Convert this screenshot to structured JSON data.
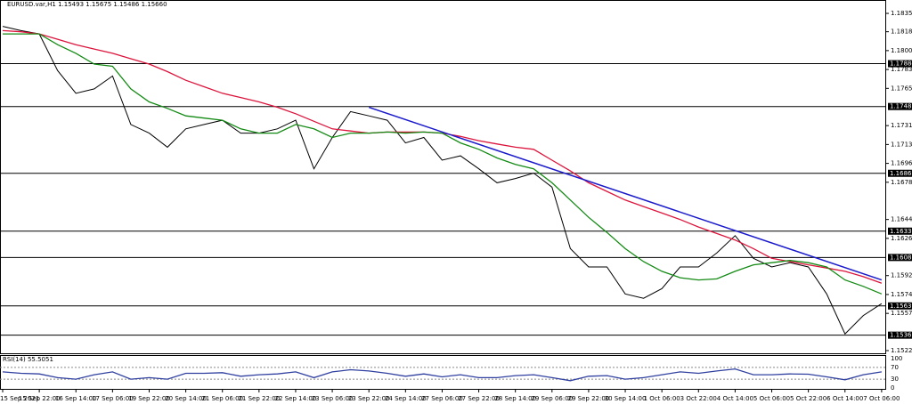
{
  "chart_data": [
    {
      "type": "line",
      "title": "EURUSD.var,H1 1.15493 1.15675 1.15486 1.15660",
      "categories": [
        "15 Sep 2021",
        null,
        "15 Sep 22:00",
        null,
        "16 Sep 14:00",
        null,
        "17 Sep 06:00",
        null,
        "19 Sep 22:00",
        null,
        "20 Sep 14:00",
        null,
        "21 Sep 06:00",
        null,
        "21 Sep 22:00",
        null,
        "22 Sep 14:00",
        null,
        "23 Sep 06:00",
        null,
        "23 Sep 22:00",
        null,
        "24 Sep 14:00",
        null,
        "27 Sep 06:00",
        null,
        "27 Sep 22:00",
        null,
        "28 Sep 14:00",
        null,
        "29 Sep 06:00",
        null,
        "29 Sep 22:00",
        null,
        "30 Sep 14:00",
        null,
        "1 Oct 06:00",
        null,
        "3 Oct 22:00",
        null,
        "4 Oct 14:00",
        null,
        "5 Oct 06:00",
        null,
        "5 Oct 22:00",
        null,
        "6 Oct 14:00",
        null,
        "7 Oct 06:00"
      ],
      "series": [
        {
          "color": "#000000",
          "values": [
            1.1823,
            1.1819,
            1.1816,
            1.1782,
            1.1761,
            1.1765,
            1.1777,
            1.1732,
            1.1724,
            1.1711,
            1.1728,
            1.1732,
            1.1736,
            1.1724,
            1.1724,
            1.1728,
            1.1736,
            1.1691,
            1.172,
            1.1744,
            1.174,
            1.1736,
            1.1715,
            1.172,
            1.1699,
            1.1703,
            1.1691,
            1.1678,
            1.1682,
            1.1687,
            1.1674,
            1.1617,
            1.16,
            1.16,
            1.1575,
            1.1571,
            1.158,
            1.16,
            1.16,
            1.1613,
            1.1629,
            1.1608,
            1.16,
            1.1604,
            1.16,
            1.1575,
            1.1538,
            1.1555,
            1.1566
          ]
        },
        {
          "color": "#dc143c",
          "values": [
            1.1819,
            1.1818,
            1.1816,
            1.1811,
            1.1806,
            1.1802,
            1.1798,
            1.1793,
            1.1788,
            1.1781,
            1.1773,
            1.1767,
            1.1761,
            1.1757,
            1.1753,
            1.1748,
            1.1742,
            1.1735,
            1.1728,
            1.1726,
            1.1724,
            1.1725,
            1.1725,
            1.1725,
            1.1724,
            1.1721,
            1.1717,
            1.1714,
            1.1711,
            1.1709,
            1.1699,
            1.1689,
            1.1678,
            1.167,
            1.1662,
            1.1656,
            1.165,
            1.1644,
            1.1637,
            1.1631,
            1.1625,
            1.1617,
            1.1608,
            1.1605,
            1.1602,
            1.1599,
            1.1596,
            1.1591,
            1.1585
          ]
        },
        {
          "color": "#138a13",
          "values": [
            1.1816,
            1.1816,
            1.1816,
            1.1806,
            1.1798,
            1.1788,
            1.1786,
            1.1765,
            1.1753,
            1.1747,
            1.174,
            1.1738,
            1.1736,
            1.1728,
            1.1724,
            1.1724,
            1.1732,
            1.1728,
            1.172,
            1.1724,
            1.1724,
            1.1725,
            1.1724,
            1.1725,
            1.1724,
            1.1715,
            1.1709,
            1.1701,
            1.1695,
            1.1691,
            1.1678,
            1.1662,
            1.1646,
            1.1632,
            1.1617,
            1.1605,
            1.1596,
            1.159,
            1.1588,
            1.1589,
            1.1596,
            1.1602,
            1.1604,
            1.1606,
            1.1604,
            1.16,
            1.1588,
            1.1582,
            1.1575
          ]
        }
      ],
      "trendline": {
        "color": "#1a1acc",
        "x": [
          20,
          48
        ],
        "values": [
          1.1748,
          1.1588
        ]
      },
      "levels": [
        1.17884,
        1.17487,
        1.16868,
        1.16332,
        1.16088,
        1.15639,
        1.15368
      ],
      "ylim": [
        1.15192,
        1.18474
      ],
      "yticks": [
        {
          "value": 1.1835,
          "label": "1.18350"
        },
        {
          "value": 1.1818,
          "label": "1.18180"
        },
        1.18005,
        {
          "value": 1.1783,
          "label": "1.17830"
        },
        1.17655,
        {
          "value": 1.1731,
          "label": "1.17310"
        },
        1.17135,
        {
          "value": 1.1696,
          "label": "1.16960"
        },
        1.16785,
        {
          "value": 1.1644,
          "label": "1.16440"
        },
        1.16265,
        {
          "value": 1.1592,
          "label": "1.15920"
        },
        1.15745,
        {
          "value": 1.1557,
          "label": "1.15570"
        },
        1.15225
      ]
    },
    {
      "type": "line",
      "title": "RSI(14) 55.5051",
      "series": [
        {
          "color": "#3040a0",
          "values": [
            55,
            50,
            48,
            35,
            30,
            45,
            55,
            30,
            35,
            30,
            50,
            50,
            52,
            40,
            45,
            48,
            55,
            35,
            55,
            62,
            58,
            50,
            40,
            48,
            38,
            45,
            35,
            35,
            42,
            45,
            35,
            25,
            40,
            42,
            30,
            35,
            45,
            55,
            50,
            58,
            65,
            45,
            45,
            48,
            47,
            38,
            28,
            45,
            55
          ]
        }
      ],
      "ylim": [
        0,
        100
      ],
      "yticks": [
        100,
        70,
        30,
        0
      ]
    }
  ]
}
